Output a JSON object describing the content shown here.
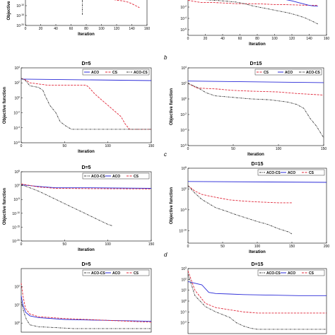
{
  "figure": {
    "row_labels": [
      "b",
      "c",
      "d"
    ],
    "series_colors": {
      "ACO": "#2a2ad8",
      "CS": "#e0283a",
      "ACO-CS": "#404040"
    }
  },
  "chart_data": [
    {
      "id": "a-left",
      "type": "line",
      "title": "",
      "xlabel": "Iteration",
      "ylabel": "Objective",
      "xticks": [
        "0",
        "20",
        "40",
        "60",
        "80",
        "100",
        "120",
        "140",
        "160"
      ],
      "yticks": [
        "10^-10",
        "10^-15",
        "10^-20"
      ],
      "xlim": [
        0,
        160
      ],
      "ylim": [
        -20,
        -5
      ],
      "legend": [],
      "series": [
        {
          "key": "CS",
          "x": [
            100,
            105,
            112,
            120,
            128,
            135,
            140,
            145,
            150
          ],
          "y": [
            -5.5,
            -6,
            -6.7,
            -7.2,
            -7.6,
            -8.2,
            -9,
            -10,
            -11
          ]
        },
        {
          "key": "ACO-CS",
          "x": [
            75,
            75
          ],
          "y": [
            -5,
            -15
          ]
        }
      ]
    },
    {
      "id": "a-right",
      "type": "line",
      "title": "",
      "xlabel": "Iteration",
      "ylabel": "",
      "xticks": [
        "0",
        "20",
        "40",
        "60",
        "80",
        "100",
        "120",
        "140",
        "160"
      ],
      "yticks": [
        "10^-2",
        "10^-4",
        "10^-6"
      ],
      "xlim": [
        0,
        160
      ],
      "ylim": [
        -7,
        0
      ],
      "legend": [],
      "series": [
        {
          "key": "CS",
          "x": [
            0,
            15,
            30,
            45,
            55,
            70,
            85,
            100,
            110,
            120,
            130,
            140,
            150
          ],
          "y": [
            -0.8,
            -1.2,
            -1.2,
            -1.3,
            -1.4,
            -1.4,
            -1.45,
            -1.55,
            -1.55,
            -1.6,
            -1.65,
            -1.7,
            -1.7
          ]
        },
        {
          "key": "ACO",
          "x": [
            0,
            50,
            80,
            100,
            110,
            120,
            130,
            140,
            145,
            150
          ],
          "y": [
            -0.4,
            -0.4,
            -0.45,
            -0.5,
            -0.6,
            -0.9,
            -1.3,
            -1.7,
            -1.8,
            -1.85
          ]
        },
        {
          "key": "ACO-CS",
          "x": [
            0,
            20,
            40,
            55,
            65,
            75,
            85,
            95,
            105,
            115,
            125,
            135,
            145,
            150
          ],
          "y": [
            -0.5,
            -0.7,
            -0.9,
            -1.1,
            -1.4,
            -1.8,
            -2.1,
            -2.4,
            -2.7,
            -3.0,
            -3.4,
            -3.9,
            -4.6,
            -5.0
          ]
        }
      ]
    },
    {
      "id": "b-left",
      "type": "line",
      "title": "D=5",
      "xlabel": "Iteration",
      "ylabel": "Objective function",
      "xticks": [
        "0",
        "50",
        "100",
        "150"
      ],
      "yticks": [
        "10^4",
        "10^2",
        "10^0",
        "10^-2",
        "10^-4",
        "10^-6"
      ],
      "xlim": [
        0,
        150
      ],
      "ylim": [
        -6,
        4
      ],
      "legend": [
        "ACO",
        "CS",
        "ACO-CS"
      ],
      "series": [
        {
          "key": "ACO",
          "x": [
            0,
            150
          ],
          "y": [
            2.5,
            2.3
          ]
        },
        {
          "key": "CS",
          "x": [
            0,
            5,
            10,
            30,
            60,
            75,
            78,
            85,
            95,
            105,
            115,
            120,
            125,
            150
          ],
          "y": [
            2.6,
            2.4,
            2.0,
            1.7,
            1.7,
            1.7,
            1.4,
            0.5,
            -0.5,
            -1.5,
            -2.5,
            -3.5,
            -4.2,
            -4.2
          ]
        },
        {
          "key": "ACO-CS",
          "x": [
            0,
            5,
            10,
            20,
            25,
            28,
            33,
            40,
            45,
            52,
            58,
            150
          ],
          "y": [
            2.6,
            2.3,
            1.6,
            1.4,
            1.0,
            0.2,
            -1.0,
            -2.0,
            -3.2,
            -3.8,
            -4.2,
            -4.2
          ]
        }
      ]
    },
    {
      "id": "b-right",
      "type": "line",
      "title": "D=15",
      "xlabel": "Iteration",
      "ylabel": "Objective function",
      "xticks": [
        "0",
        "50",
        "100",
        "150"
      ],
      "yticks": [
        "10^4",
        "10^2",
        "10^0",
        "10^-2",
        "10^-4",
        "10^-6"
      ],
      "xlim": [
        0,
        150
      ],
      "ylim": [
        -6,
        4
      ],
      "legend": [
        "CS",
        "ACO",
        "ACO-CS"
      ],
      "series": [
        {
          "key": "ACO",
          "x": [
            0,
            150
          ],
          "y": [
            2.3,
            2.1
          ]
        },
        {
          "key": "CS",
          "x": [
            0,
            10,
            30,
            50,
            70,
            100,
            120,
            135,
            150
          ],
          "y": [
            2.0,
            1.4,
            1.3,
            1.1,
            1.0,
            0.9,
            0.7,
            0.6,
            0.5
          ]
        },
        {
          "key": "ACO-CS",
          "x": [
            0,
            10,
            20,
            30,
            50,
            70,
            90,
            110,
            120,
            128,
            135,
            142,
            150
          ],
          "y": [
            2.0,
            1.5,
            0.8,
            0.4,
            0.2,
            0.0,
            -0.1,
            -0.4,
            -0.7,
            -1.2,
            -2.5,
            -3.5,
            -5.0
          ]
        }
      ]
    },
    {
      "id": "c-left",
      "type": "line",
      "title": "D=5",
      "xlabel": "Iteration",
      "ylabel": "Objective function",
      "xticks": [
        "0",
        "50",
        "100",
        "150"
      ],
      "yticks": [
        "10^5",
        "10^0",
        "10^-5",
        "10^-10",
        "10^-15",
        "10^-20"
      ],
      "xlim": [
        0,
        150
      ],
      "ylim": [
        -20,
        5
      ],
      "legend": [
        "ACO-CS",
        "ACO",
        "CS"
      ],
      "series": [
        {
          "key": "ACO",
          "x": [
            0,
            20,
            40,
            80,
            150
          ],
          "y": [
            0.3,
            -0.3,
            -0.8,
            -0.8,
            -1.0
          ]
        },
        {
          "key": "CS",
          "x": [
            0,
            20,
            40,
            80,
            150
          ],
          "y": [
            0.6,
            -0.5,
            -1.0,
            -1.1,
            -1.2
          ]
        },
        {
          "key": "ACO-CS",
          "x": [
            0,
            10,
            20,
            30,
            40,
            50,
            60,
            70,
            80,
            90,
            100,
            105
          ],
          "y": [
            0.3,
            -0.8,
            -2.0,
            -3.5,
            -5.0,
            -6.5,
            -8.0,
            -9.5,
            -11.0,
            -12.5,
            -14.0,
            -14.5
          ]
        }
      ]
    },
    {
      "id": "c-right",
      "type": "line",
      "title": "D=15",
      "xlabel": "Iteration",
      "ylabel": "Objective function",
      "xticks": [
        "0",
        "50",
        "100",
        "150",
        "200"
      ],
      "yticks": [
        "10^5",
        "10^0",
        "10^-5",
        "10^-10"
      ],
      "xlim": [
        0,
        200
      ],
      "ylim": [
        -13,
        5
      ],
      "legend": [
        "ACO-CS",
        "ACO",
        "CS"
      ],
      "series": [
        {
          "key": "ACO",
          "x": [
            0,
            200
          ],
          "y": [
            1.8,
            1.6
          ]
        },
        {
          "key": "CS",
          "x": [
            0,
            10,
            20,
            40,
            60,
            80,
            100,
            130,
            150
          ],
          "y": [
            0.8,
            -0.5,
            -1.3,
            -2.0,
            -2.6,
            -2.9,
            -3.1,
            -3.3,
            -3.3
          ]
        },
        {
          "key": "ACO-CS",
          "x": [
            0,
            10,
            20,
            30,
            40,
            55,
            70,
            85,
            100,
            115,
            130,
            145,
            150
          ],
          "y": [
            0.8,
            -1.0,
            -2.5,
            -3.5,
            -4.5,
            -5.3,
            -6.2,
            -7.0,
            -7.8,
            -8.5,
            -9.5,
            -10.3,
            -10.8
          ]
        }
      ]
    },
    {
      "id": "d-left",
      "type": "line",
      "title": "D=5",
      "xlabel": "",
      "ylabel": "",
      "xticks": [],
      "yticks": [
        "10^2",
        "10^1",
        "10^0"
      ],
      "xlim": [
        0,
        150
      ],
      "ylim": [
        -0.5,
        3
      ],
      "legend": [
        "ACO-CS",
        "ACO",
        "CS"
      ],
      "series": [
        {
          "key": "ACO",
          "x": [
            0,
            2,
            5,
            10,
            20,
            50,
            100,
            150
          ],
          "y": [
            1.5,
            1.0,
            0.6,
            0.4,
            0.3,
            0.2,
            0.15,
            0.1
          ]
        },
        {
          "key": "CS",
          "x": [
            0,
            2,
            5,
            10,
            20,
            50,
            100,
            150
          ],
          "y": [
            2.2,
            1.5,
            0.8,
            0.5,
            0.35,
            0.25,
            0.15,
            0.05
          ]
        },
        {
          "key": "ACO-CS",
          "x": [
            0,
            3,
            6,
            10,
            20,
            40,
            60,
            100,
            150
          ],
          "y": [
            1.2,
            0.6,
            0.2,
            -0.1,
            -0.2,
            -0.25,
            -0.3,
            -0.3,
            -0.3
          ]
        }
      ]
    },
    {
      "id": "d-right",
      "type": "line",
      "title": "D=15",
      "xlabel": "",
      "ylabel": "",
      "xticks": [],
      "yticks": [
        "10^3",
        "10^2",
        "10^1",
        "10^0",
        "10^-1",
        "10^-2"
      ],
      "xlim": [
        0,
        200
      ],
      "ylim": [
        -3,
        3
      ],
      "legend": [
        "ACO-CS",
        "ACO",
        "CS"
      ],
      "series": [
        {
          "key": "ACO",
          "x": [
            0,
            20,
            30,
            40,
            60,
            80,
            120,
            160,
            200
          ],
          "y": [
            1.8,
            1.5,
            0.8,
            0.7,
            0.65,
            0.6,
            0.55,
            0.5,
            0.5
          ]
        },
        {
          "key": "CS",
          "x": [
            0,
            10,
            25,
            40,
            60,
            80,
            100,
            150,
            200
          ],
          "y": [
            2.8,
            1.0,
            -0.2,
            -0.6,
            -0.8,
            -1.0,
            -1.1,
            -1.1,
            -1.1
          ]
        },
        {
          "key": "ACO-CS",
          "x": [
            0,
            10,
            25,
            40,
            60,
            70,
            80,
            90,
            100,
            140,
            200
          ],
          "y": [
            2.5,
            0.5,
            -0.5,
            -1.0,
            -1.5,
            -2.0,
            -2.3,
            -2.5,
            -2.6,
            -2.6,
            -2.6
          ]
        }
      ]
    }
  ]
}
